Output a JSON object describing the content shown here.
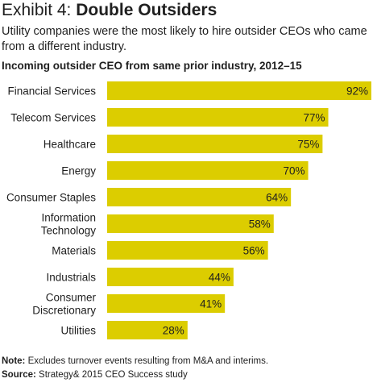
{
  "header": {
    "exhibit_label": "Exhibit 4:",
    "title": "Double Outsiders",
    "subtitle": "Utility companies were the most likely to hire outsider CEOs who came from a different industry."
  },
  "chart_data": {
    "type": "bar",
    "orientation": "horizontal",
    "title": "Incoming outsider CEO from same prior industry, 2012–15",
    "categories": [
      "Financial Services",
      "Telecom Services",
      "Healthcare",
      "Energy",
      "Consumer Staples",
      "Information Technology",
      "Materials",
      "Industrials",
      "Consumer Discretionary",
      "Utilities"
    ],
    "category_lines": [
      [
        "Financial Services"
      ],
      [
        "Telecom Services"
      ],
      [
        "Healthcare"
      ],
      [
        "Energy"
      ],
      [
        "Consumer Staples"
      ],
      [
        "Information",
        "Technology"
      ],
      [
        "Materials"
      ],
      [
        "Industrials"
      ],
      [
        "Consumer",
        "Discretionary"
      ],
      [
        "Utilities"
      ]
    ],
    "values": [
      92,
      77,
      75,
      70,
      64,
      58,
      56,
      44,
      41,
      28
    ],
    "value_labels": [
      "92%",
      "77%",
      "75%",
      "70%",
      "64%",
      "58%",
      "56%",
      "44%",
      "41%",
      "28%"
    ],
    "xlim": [
      0,
      92
    ],
    "bar_color": "#dccd00",
    "grid": false,
    "legend": "none"
  },
  "footer": {
    "note_label": "Note:",
    "note_text": " Excludes turnover events resulting from M&A and interims.",
    "source_label": "Source:",
    "source_text": " Strategy& 2015 CEO Success study"
  }
}
